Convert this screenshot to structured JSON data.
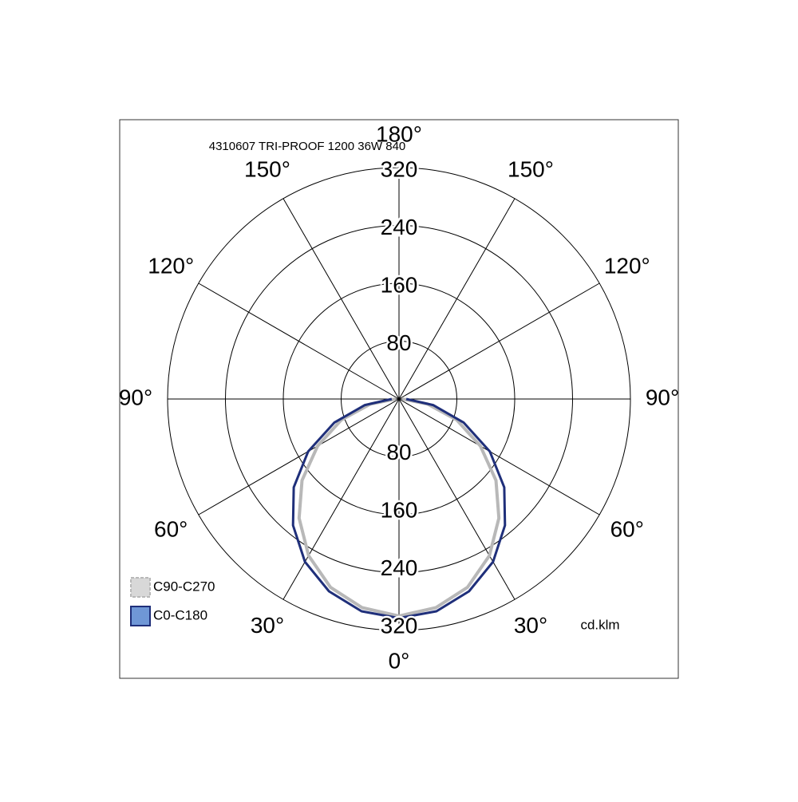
{
  "chart_data": {
    "type": "polar",
    "title": "4310607 TRI-PROOF 1200 36W 840",
    "unit_label": "cd.klm",
    "theta": [
      0,
      10,
      20,
      30,
      40,
      50,
      60,
      70,
      80,
      90
    ],
    "series": [
      {
        "name": "C90-C270",
        "color": "#b8b8b8",
        "fill": "#d8d8d8",
        "dashed": true,
        "values": [
          300,
          293,
          277,
          250,
          215,
          175,
          130,
          85,
          40,
          5
        ]
      },
      {
        "name": "C0-C180",
        "color": "#1f2f7a",
        "fill": "#6f97d6",
        "dashed": false,
        "values": [
          303,
          298,
          283,
          260,
          228,
          190,
          145,
          95,
          48,
          10
        ]
      }
    ],
    "rlim": [
      0,
      320
    ],
    "rticks": [
      80,
      160,
      240,
      320
    ],
    "thetaticks": [
      {
        "value": 0,
        "label": "0°"
      },
      {
        "value": 30,
        "label": "30°"
      },
      {
        "value": 60,
        "label": "60°"
      },
      {
        "value": 90,
        "label": "90°"
      },
      {
        "value": 120,
        "label": "120°"
      },
      {
        "value": 150,
        "label": "150°"
      },
      {
        "value": 180,
        "label": "180°"
      }
    ],
    "grid": true
  }
}
